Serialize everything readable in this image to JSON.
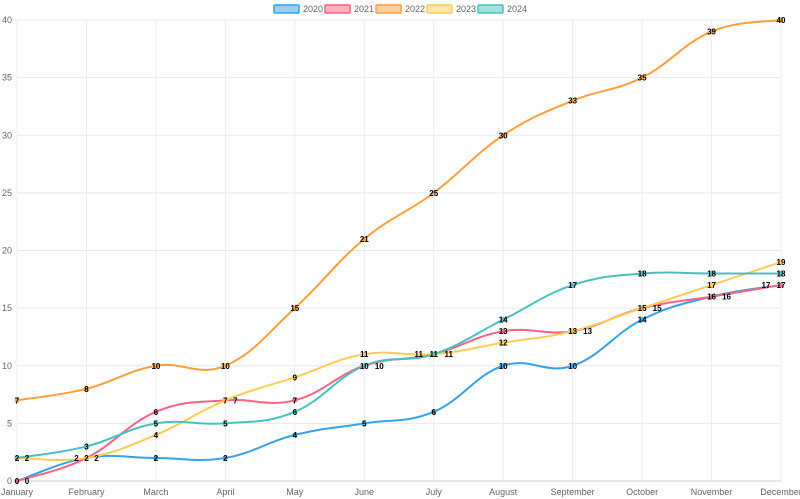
{
  "chart_data": {
    "type": "line",
    "categories": [
      "January",
      "February",
      "March",
      "April",
      "May",
      "June",
      "July",
      "August",
      "September",
      "October",
      "November",
      "December"
    ],
    "ylim": [
      0,
      40
    ],
    "yticks": [
      0,
      5,
      10,
      15,
      20,
      25,
      30,
      35,
      40
    ],
    "grid": true,
    "legend_position": "top",
    "data_labels": true,
    "series": [
      {
        "name": "2020",
        "color": "#36a2eb",
        "values": [
          0,
          2,
          2,
          2,
          4,
          5,
          6,
          10,
          10,
          14,
          16,
          17
        ]
      },
      {
        "name": "2021",
        "color": "#ff6384",
        "values": [
          0,
          2,
          6,
          7,
          7,
          10,
          11,
          13,
          13,
          15,
          16,
          17
        ]
      },
      {
        "name": "2022",
        "color": "#ff9f40",
        "values": [
          7,
          8,
          10,
          10,
          15,
          21,
          25,
          30,
          33,
          35,
          39,
          40
        ]
      },
      {
        "name": "2023",
        "color": "#ffcd56",
        "values": [
          2,
          2,
          4,
          7,
          9,
          11,
          11,
          12,
          13,
          15,
          17,
          19
        ]
      },
      {
        "name": "2024",
        "color": "#4bc0c0",
        "values": [
          2,
          3,
          5,
          5,
          6,
          10,
          11,
          14,
          17,
          18,
          18,
          18
        ]
      }
    ]
  }
}
